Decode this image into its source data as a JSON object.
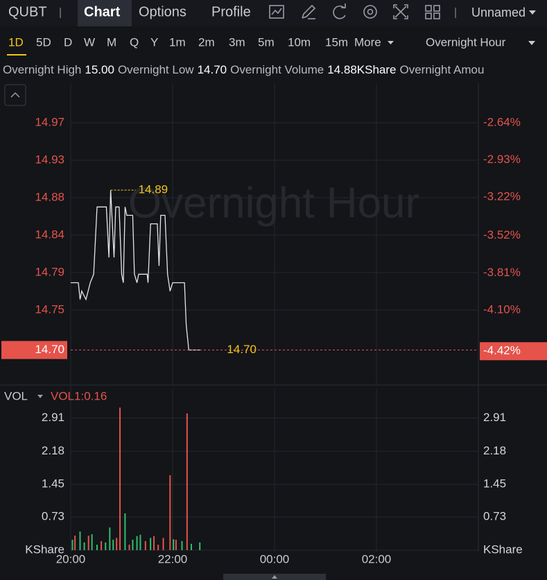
{
  "toolbar": {
    "symbol": "QUBT",
    "tabs": [
      "Chart",
      "Options",
      "Profile"
    ],
    "layout": "Unnamed"
  },
  "timeframes": {
    "items": [
      "1D",
      "5D",
      "D",
      "W",
      "M",
      "Q",
      "Y",
      "1m",
      "2m",
      "3m",
      "5m",
      "10m",
      "15m"
    ],
    "more": "More",
    "session": "Overnight Hour"
  },
  "stats": [
    {
      "label": "Overnight High",
      "value": "15.00"
    },
    {
      "label": "Overnight Low",
      "value": "14.70"
    },
    {
      "label": "Overnight Volume",
      "value": "14.88KShare"
    },
    {
      "label": "Overnight Amou"
    }
  ],
  "chart_data": [
    {
      "type": "line",
      "watermark": "Overnight Hour",
      "color": "#e6e6e6",
      "x": [
        "20:00",
        "20:09",
        "20:11",
        "20:13",
        "20:18",
        "20:23",
        "20:27",
        "20:31",
        "20:42",
        "20:45",
        "20:47",
        "20:51",
        "20:53",
        "20:57",
        "21:00",
        "21:02",
        "21:04",
        "21:06",
        "21:13",
        "21:15",
        "21:18",
        "21:20",
        "21:30",
        "21:31",
        "21:34",
        "21:42",
        "21:44",
        "21:46",
        "21:51",
        "21:54",
        "21:57",
        "22:00",
        "22:14",
        "22:16",
        "22:19",
        "22:33"
      ],
      "values": [
        14.78,
        14.78,
        14.76,
        14.77,
        14.76,
        14.78,
        14.79,
        14.87,
        14.87,
        14.81,
        14.89,
        14.81,
        14.87,
        14.87,
        14.79,
        14.78,
        14.87,
        14.86,
        14.86,
        14.79,
        14.78,
        14.79,
        14.79,
        14.78,
        14.85,
        14.85,
        14.8,
        14.86,
        14.86,
        14.79,
        14.77,
        14.78,
        14.78,
        14.73,
        14.7,
        14.7
      ],
      "xlim": [
        "20:00",
        "04:00"
      ],
      "xticks": [
        "20:00",
        "22:00",
        "00:00",
        "02:00"
      ],
      "ylim": [
        14.66,
        15.017
      ],
      "yticks": [
        {
          "value": 14.7475,
          "label": "14.75"
        },
        {
          "value": 14.792,
          "label": "14.79"
        },
        {
          "value": 14.8365,
          "label": "14.84"
        },
        {
          "value": 14.881,
          "label": "14.88"
        },
        {
          "value": 14.9255,
          "label": "14.93"
        },
        {
          "value": 14.97,
          "label": "14.97"
        }
      ],
      "y2lim": [
        -4.673,
        -2.332
      ],
      "y2ticks": [
        {
          "value": -4.1,
          "label": "-4.10%"
        },
        {
          "value": -3.81,
          "label": "-3.81%"
        },
        {
          "value": -3.52,
          "label": "-3.52%"
        },
        {
          "value": -3.22,
          "label": "-3.22%"
        },
        {
          "value": -2.93,
          "label": "-2.93%"
        },
        {
          "value": -2.64,
          "label": "-2.64%"
        }
      ],
      "high": 14.89,
      "last": {
        "value": 14.7,
        "label": "14.70",
        "pct": {
          "value": -4.42,
          "label": "-4.42%"
        }
      },
      "grid": true
    },
    {
      "type": "bar",
      "indicator": "VOL",
      "indicator_value": "VOL1:0.16",
      "x": [
        "20:02",
        "20:05",
        "20:11",
        "20:16",
        "20:21",
        "20:25",
        "20:31",
        "20:36",
        "20:41",
        "20:46",
        "20:50",
        "20:54",
        "20:58",
        "21:04",
        "21:09",
        "21:13",
        "21:18",
        "21:22",
        "21:28",
        "21:34",
        "21:38",
        "21:43",
        "21:49",
        "21:57",
        "22:01",
        "22:04",
        "22:11",
        "22:17",
        "22:22",
        "22:32"
      ],
      "values": [
        0.23,
        0.32,
        0.41,
        0.17,
        0.32,
        0.35,
        0.12,
        0.2,
        0.17,
        0.5,
        0.23,
        0.27,
        3.14,
        0.81,
        0.12,
        0.23,
        0.31,
        0.34,
        0.2,
        0.27,
        0.31,
        0.12,
        0.27,
        1.65,
        0.24,
        0.23,
        0.2,
        3.01,
        0.14,
        0.17
      ],
      "colors": [
        "#2fbf71",
        "#e5534b",
        "#2fbf71",
        "#2fbf71",
        "#e5534b",
        "#2fbf71",
        "#2fbf71",
        "#e5534b",
        "#2fbf71",
        "#2fbf71",
        "#2fbf71",
        "#e5534b",
        "#e5534b",
        "#2fbf71",
        "#e5534b",
        "#2fbf71",
        "#2fbf71",
        "#2fbf71",
        "#e5534b",
        "#2fbf71",
        "#e5534b",
        "#e5534b",
        "#e5534b",
        "#e5534b",
        "#2fbf71",
        "#e5534b",
        "#2fbf71",
        "#e5534b",
        "#2fbf71",
        "#2fbf71"
      ],
      "xlim": [
        "20:00",
        "04:00"
      ],
      "xticks": [
        "20:00",
        "22:00",
        "00:00",
        "02:00"
      ],
      "ylim": [
        0,
        3.56
      ],
      "yticks": [
        {
          "value": 0,
          "label": "KShare"
        },
        0.73,
        1.45,
        2.18,
        2.91
      ],
      "grid": true
    }
  ]
}
